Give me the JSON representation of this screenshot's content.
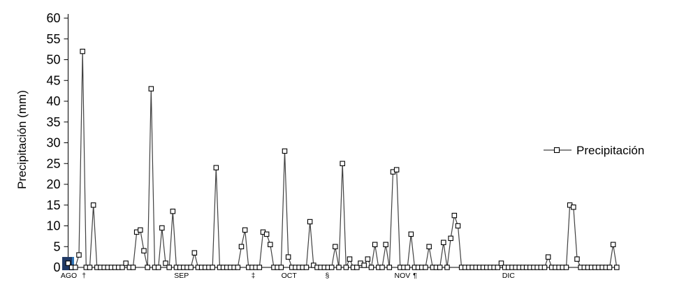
{
  "chart_data": {
    "type": "line",
    "series_name": "Precipitación",
    "ylabel": "Precipitación (mm)",
    "ylim": [
      0,
      60
    ],
    "y_tick_step": 5,
    "y_ticks": [
      0,
      5,
      10,
      15,
      20,
      25,
      30,
      35,
      40,
      45,
      50,
      55,
      60
    ],
    "x_unit": "days (Aug 1 – Dec 31)",
    "x_labels": [
      {
        "label": "AGO",
        "day": 0.2
      },
      {
        "label": "†",
        "day": 4.4
      },
      {
        "label": "SEP",
        "day": 31.4
      },
      {
        "label": "‡",
        "day": 51.3
      },
      {
        "label": "OCT",
        "day": 61.2
      },
      {
        "label": "§",
        "day": 71.8
      },
      {
        "label": "NOV",
        "day": 92.6
      },
      {
        "label": "¶",
        "day": 96.1
      },
      {
        "label": "DIC",
        "day": 122
      }
    ],
    "values": [
      1,
      0,
      0,
      3,
      52,
      0,
      0,
      15,
      0,
      0,
      0,
      0,
      0,
      0,
      0,
      0,
      1,
      0,
      0,
      8.5,
      9,
      4,
      0,
      43,
      0,
      0,
      9.5,
      1,
      0,
      13.5,
      0,
      0,
      0,
      0,
      0,
      3.5,
      0,
      0,
      0,
      0,
      0,
      24,
      0,
      0,
      0,
      0,
      0,
      0,
      5,
      9,
      0,
      0,
      0,
      0,
      8.5,
      8,
      5.5,
      0,
      0,
      0,
      28,
      2.5,
      0,
      0,
      0,
      0,
      0,
      11,
      0.5,
      0,
      0,
      0,
      0,
      0,
      5,
      0,
      25,
      0,
      2,
      0,
      0,
      1,
      0.5,
      2,
      0,
      5.5,
      0,
      0,
      5.5,
      0,
      23,
      23.5,
      0,
      0,
      0,
      8,
      0,
      0,
      0,
      0,
      5,
      0,
      0,
      0,
      6,
      0,
      7,
      12.5,
      10,
      0,
      0,
      0,
      0,
      0,
      0,
      0,
      0,
      0,
      0,
      0,
      1,
      0,
      0,
      0,
      0,
      0,
      0,
      0,
      0,
      0,
      0,
      0,
      0,
      2.5,
      0,
      0,
      0,
      0,
      0,
      15,
      14.5,
      2,
      0,
      0,
      0,
      0,
      0,
      0,
      0,
      0,
      0,
      5.5,
      0
    ],
    "highlight": {
      "point_index": 0,
      "fill_dark": "#1F3864",
      "fill_light": "#2E75B6"
    },
    "legend": {
      "label": "Precipitación",
      "position": "right"
    },
    "grid": false,
    "line_color": "#404040",
    "marker": {
      "shape": "square",
      "fill": "#ffffff",
      "stroke": "#000000"
    }
  }
}
